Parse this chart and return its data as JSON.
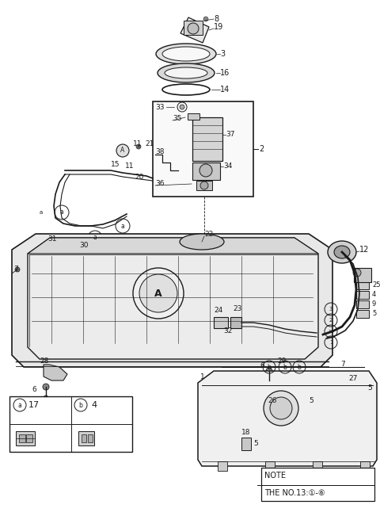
{
  "bg_color": "#ffffff",
  "lc": "#1a1a1a",
  "fig_w": 4.8,
  "fig_h": 6.56,
  "dpi": 100,
  "note": [
    "NOTE",
    "THE NO.13:①-⑥"
  ],
  "legend_a_qty": "17",
  "legend_b_qty": "4"
}
